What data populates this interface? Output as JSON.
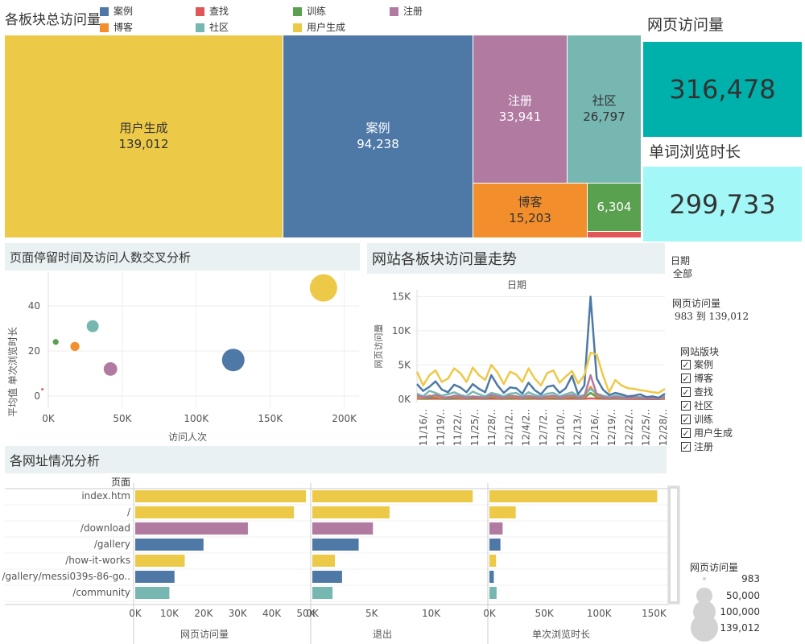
{
  "treemap": {
    "title": "各板块总访问量",
    "legend": [
      {
        "label": "案例",
        "color": "#4e79a7"
      },
      {
        "label": "查找",
        "color": "#e15759"
      },
      {
        "label": "训练",
        "color": "#59a14f"
      },
      {
        "label": "注册",
        "color": "#b07aa1"
      },
      {
        "label": "博客",
        "color": "#f28e2b"
      },
      {
        "label": "社区",
        "color": "#76b7b2"
      },
      {
        "label": "用户生成",
        "color": "#edc948"
      }
    ],
    "cells": [
      {
        "name": "用户生成",
        "value": "139,012",
        "color": "#edc948",
        "text": "#333"
      },
      {
        "name": "案例",
        "value": "94,238",
        "color": "#4e79a7",
        "text": "#fff"
      },
      {
        "name": "注册",
        "value": "33,941",
        "color": "#b07aa1",
        "text": "#fff"
      },
      {
        "name": "社区",
        "value": "26,797",
        "color": "#76b7b2",
        "text": "#333"
      },
      {
        "name": "博客",
        "value": "15,203",
        "color": "#f28e2b",
        "text": "#333"
      },
      {
        "name": "",
        "value": "6,304",
        "color": "#59a14f",
        "text": "#fff"
      },
      {
        "name": "",
        "value": "",
        "color": "#e15759",
        "text": "#fff"
      }
    ]
  },
  "kpi": {
    "pv_title": "网页访问量",
    "pv_value": "316,478",
    "pv_color": "#00b0aa",
    "dur_title": "单词浏览时长",
    "dur_value": "299,733",
    "dur_color": "#a3f7f7"
  },
  "scatter": {
    "title": "页面停留时间及访问人数交叉分析",
    "xlabel": "访问人次",
    "ylabel": "平均值 单次浏览时长",
    "xticks": [
      "0K",
      "50K",
      "100K",
      "150K",
      "200K"
    ],
    "yticks": [
      "0",
      "20",
      "40"
    ]
  },
  "line": {
    "title": "网站各板块访问量走势",
    "top_label": "日期",
    "ylabel": "网页访问量",
    "yticks": [
      "0K",
      "5K",
      "10K",
      "15K"
    ],
    "xticks": [
      "11/16/..",
      "11/19/..",
      "11/22/..",
      "11/25/..",
      "11/28/..",
      "12/1/2..",
      "12/4/2..",
      "12/7/2..",
      "12/10/..",
      "12/13/..",
      "12/16/..",
      "12/19/..",
      "12/22/..",
      "12/25/..",
      "12/28/.."
    ]
  },
  "filters": {
    "date_title": "日期",
    "date_value": "全部",
    "range_title": "网页访问量",
    "range_value": "983 到 139,012",
    "section_title": "网站版块",
    "options": [
      "案例",
      "博客",
      "查找",
      "社区",
      "训练",
      "用户生成",
      "注册"
    ],
    "check_mark": "✓"
  },
  "sizelegend": {
    "title": "网页访问量",
    "items": [
      "983",
      "50,000",
      "100,000",
      "139,012"
    ]
  },
  "bars": {
    "title": "各网址情况分析",
    "page_header": "页面",
    "pages": [
      "index.htm",
      "/",
      "/download",
      "/gallery",
      "/how-it-works",
      "/gallery/messi039s-86-go..",
      "/community"
    ],
    "panel1_label": "网页访问量",
    "panel1_ticks": [
      "0K",
      "10K",
      "20K",
      "30K",
      "40K",
      "50K"
    ],
    "panel2_label": "退出",
    "panel2_ticks": [
      "0K",
      "5K",
      "10K"
    ],
    "panel3_label": "单次浏览时长",
    "panel3_ticks": [
      "0K",
      "50K",
      "100K",
      "150K"
    ]
  },
  "chart_data": [
    {
      "type": "scatter",
      "title": "页面停留时间及访问人数交叉分析",
      "xlabel": "访问人次",
      "ylabel": "平均值 单次浏览时长",
      "xlim": [
        0,
        210000
      ],
      "ylim": [
        -5,
        55
      ],
      "points": [
        {
          "x": 186000,
          "y": 48,
          "size": 139012,
          "color": "#edc948"
        },
        {
          "x": 125000,
          "y": 16,
          "size": 94238,
          "color": "#4e79a7"
        },
        {
          "x": 42000,
          "y": 12,
          "size": 33941,
          "color": "#b07aa1"
        },
        {
          "x": 30000,
          "y": 31,
          "size": 26797,
          "color": "#76b7b2"
        },
        {
          "x": 18000,
          "y": 22,
          "size": 15203,
          "color": "#f28e2b"
        },
        {
          "x": 5000,
          "y": 24,
          "size": 6304,
          "color": "#59a14f"
        },
        {
          "x": -4000,
          "y": 3,
          "size": 983,
          "color": "#e15759"
        }
      ]
    },
    {
      "type": "line",
      "title": "网站各板块访问量走势",
      "xlabel": "日期",
      "ylabel": "网页访问量",
      "ylim": [
        -500,
        16000
      ],
      "series": [
        {
          "name": "用户生成",
          "color": "#edc948",
          "values": [
            4000,
            2000,
            3500,
            4200,
            2500,
            3000,
            4500,
            3800,
            2500,
            4600,
            3500,
            2800,
            5000,
            3900,
            2200,
            4000,
            3600,
            2500,
            4500,
            3000,
            2000,
            3800,
            4200,
            2400,
            3300,
            4100,
            2300,
            3500,
            6800,
            6500,
            3500,
            1000,
            2800,
            2000,
            1600,
            1500,
            1300,
            1200,
            1000,
            900,
            1500
          ]
        },
        {
          "name": "案例",
          "color": "#4e79a7",
          "values": [
            2200,
            1200,
            1800,
            2600,
            1400,
            1000,
            2100,
            1700,
            1000,
            2200,
            1500,
            1000,
            3500,
            2000,
            900,
            1700,
            1600,
            800,
            2400,
            1300,
            700,
            1800,
            2000,
            900,
            1600,
            3400,
            700,
            2000,
            15000,
            3000,
            1400,
            600,
            900,
            700,
            400,
            500,
            700,
            300,
            400,
            200,
            800
          ]
        },
        {
          "name": "注册",
          "color": "#b07aa1",
          "values": [
            500,
            300,
            400,
            600,
            300,
            200,
            500,
            400,
            200,
            400,
            300,
            200,
            600,
            400,
            200,
            500,
            400,
            200,
            500,
            300,
            200,
            400,
            500,
            200,
            400,
            600,
            200,
            400,
            3500,
            700,
            300,
            200,
            300,
            200,
            150,
            200,
            200,
            100,
            150,
            100,
            300
          ]
        },
        {
          "name": "社区",
          "color": "#76b7b2",
          "values": [
            800,
            400,
            1200,
            900,
            500,
            700,
            1000,
            600,
            400,
            1100,
            700,
            400,
            900,
            700,
            400,
            800,
            900,
            400,
            1000,
            600,
            400,
            800,
            900,
            400,
            700,
            1000,
            400,
            600,
            1500,
            800,
            500,
            300,
            500,
            400,
            300,
            300,
            300,
            200,
            300,
            200,
            500
          ]
        },
        {
          "name": "博客",
          "color": "#f28e2b",
          "values": [
            300,
            200,
            500,
            400,
            200,
            300,
            400,
            300,
            200,
            400,
            300,
            200,
            500,
            300,
            200,
            400,
            300,
            200,
            400,
            300,
            200,
            300,
            400,
            200,
            300,
            500,
            200,
            300,
            1800,
            500,
            300,
            200,
            300,
            200,
            150,
            150,
            200,
            100,
            150,
            100,
            200
          ]
        },
        {
          "name": "训练",
          "color": "#59a14f",
          "values": [
            200,
            100,
            200,
            300,
            100,
            100,
            200,
            200,
            100,
            200,
            200,
            100,
            300,
            200,
            100,
            200,
            200,
            100,
            200,
            200,
            100,
            200,
            200,
            100,
            200,
            300,
            100,
            200,
            900,
            300,
            200,
            100,
            200,
            100,
            100,
            100,
            100,
            50,
            100,
            50,
            100
          ]
        },
        {
          "name": "查找",
          "color": "#e15759",
          "values": [
            50,
            30,
            40,
            50,
            30,
            30,
            40,
            40,
            30,
            40,
            40,
            30,
            50,
            40,
            30,
            40,
            40,
            30,
            40,
            40,
            30,
            40,
            40,
            30,
            40,
            50,
            30,
            40,
            100,
            50,
            40,
            30,
            40,
            30,
            20,
            20,
            30,
            10,
            20,
            10,
            30
          ]
        }
      ]
    },
    {
      "type": "bar",
      "title": "各网址情况分析",
      "categories": [
        "index.htm",
        "/",
        "/download",
        "/gallery",
        "/how-it-works",
        "/gallery/messi039s-86-go..",
        "/community"
      ],
      "colors": [
        "#edc948",
        "#edc948",
        "#b07aa1",
        "#4e79a7",
        "#edc948",
        "#4e79a7",
        "#76b7b2"
      ],
      "series": [
        {
          "name": "网页访问量",
          "xlim": [
            0,
            50000
          ],
          "values": [
            50000,
            46500,
            33000,
            20000,
            14500,
            11500,
            10000
          ]
        },
        {
          "name": "退出",
          "xlim": [
            0,
            14500
          ],
          "values": [
            13500,
            6500,
            5100,
            3900,
            1900,
            2500,
            1700
          ]
        },
        {
          "name": "单次浏览时长",
          "xlim": [
            0,
            160000
          ],
          "values": [
            153000,
            24000,
            12000,
            10000,
            6000,
            4000,
            6500
          ]
        }
      ]
    }
  ]
}
